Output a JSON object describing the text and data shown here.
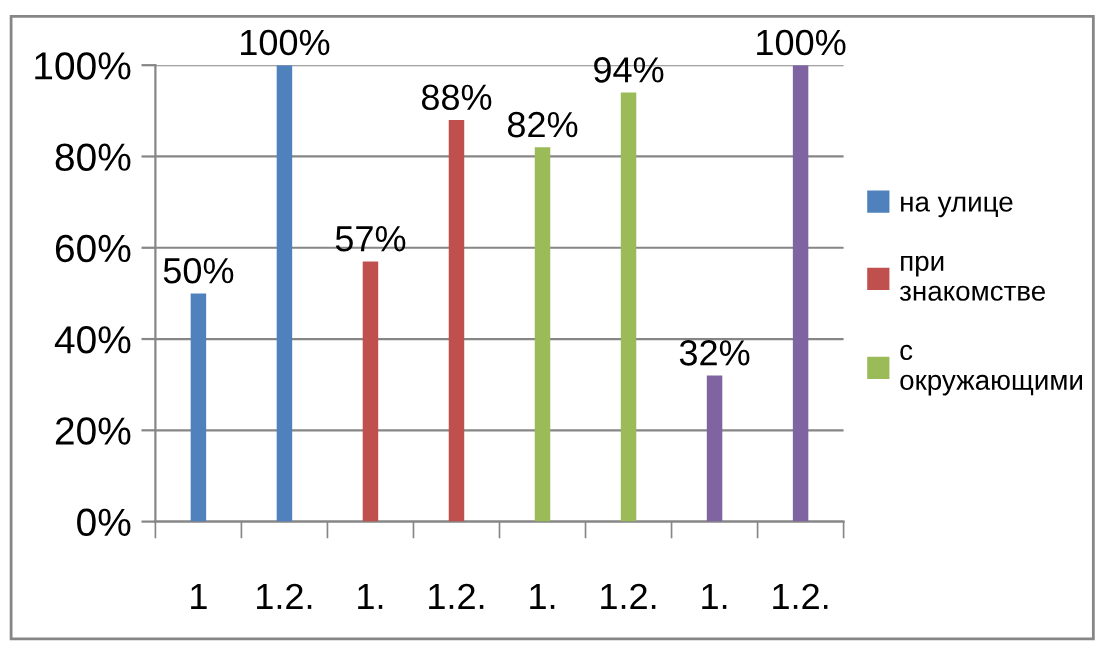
{
  "chart_data": {
    "type": "bar",
    "categories": [
      "1",
      "1.2.",
      "1.",
      "1.2.",
      "1.",
      "1.2.",
      "1.",
      "1.2."
    ],
    "series": [
      {
        "name": "на улице",
        "color": "#4f81bd",
        "values": [
          50,
          100,
          null,
          null,
          null,
          null,
          null,
          null
        ],
        "value_labels": [
          "50%",
          "100%",
          null,
          null,
          null,
          null,
          null,
          null
        ]
      },
      {
        "name": "при знакомстве",
        "color": "#c0504d",
        "values": [
          null,
          null,
          57,
          88,
          null,
          null,
          null,
          null
        ],
        "value_labels": [
          null,
          null,
          "57%",
          "88%",
          null,
          null,
          null,
          null
        ]
      },
      {
        "name": "с окружающими",
        "color": "#9bbb59",
        "values": [
          null,
          null,
          null,
          null,
          82,
          94,
          null,
          null
        ],
        "value_labels": [
          null,
          null,
          null,
          null,
          "82%",
          "94%",
          null,
          null
        ]
      },
      {
        "color": "#8064a2",
        "values": [
          null,
          null,
          null,
          null,
          null,
          null,
          32,
          100
        ],
        "value_labels": [
          null,
          null,
          null,
          null,
          null,
          null,
          "32%",
          "100%"
        ]
      }
    ],
    "ylim": [
      0,
      100
    ],
    "yticks": [
      {
        "value": 0,
        "label": "0%"
      },
      {
        "value": 20,
        "label": "20%"
      },
      {
        "value": 40,
        "label": "40%"
      },
      {
        "value": 60,
        "label": "60%"
      },
      {
        "value": 80,
        "label": "80%"
      },
      {
        "value": 100,
        "label": "100%"
      }
    ],
    "grid": "y",
    "legend": "right"
  }
}
